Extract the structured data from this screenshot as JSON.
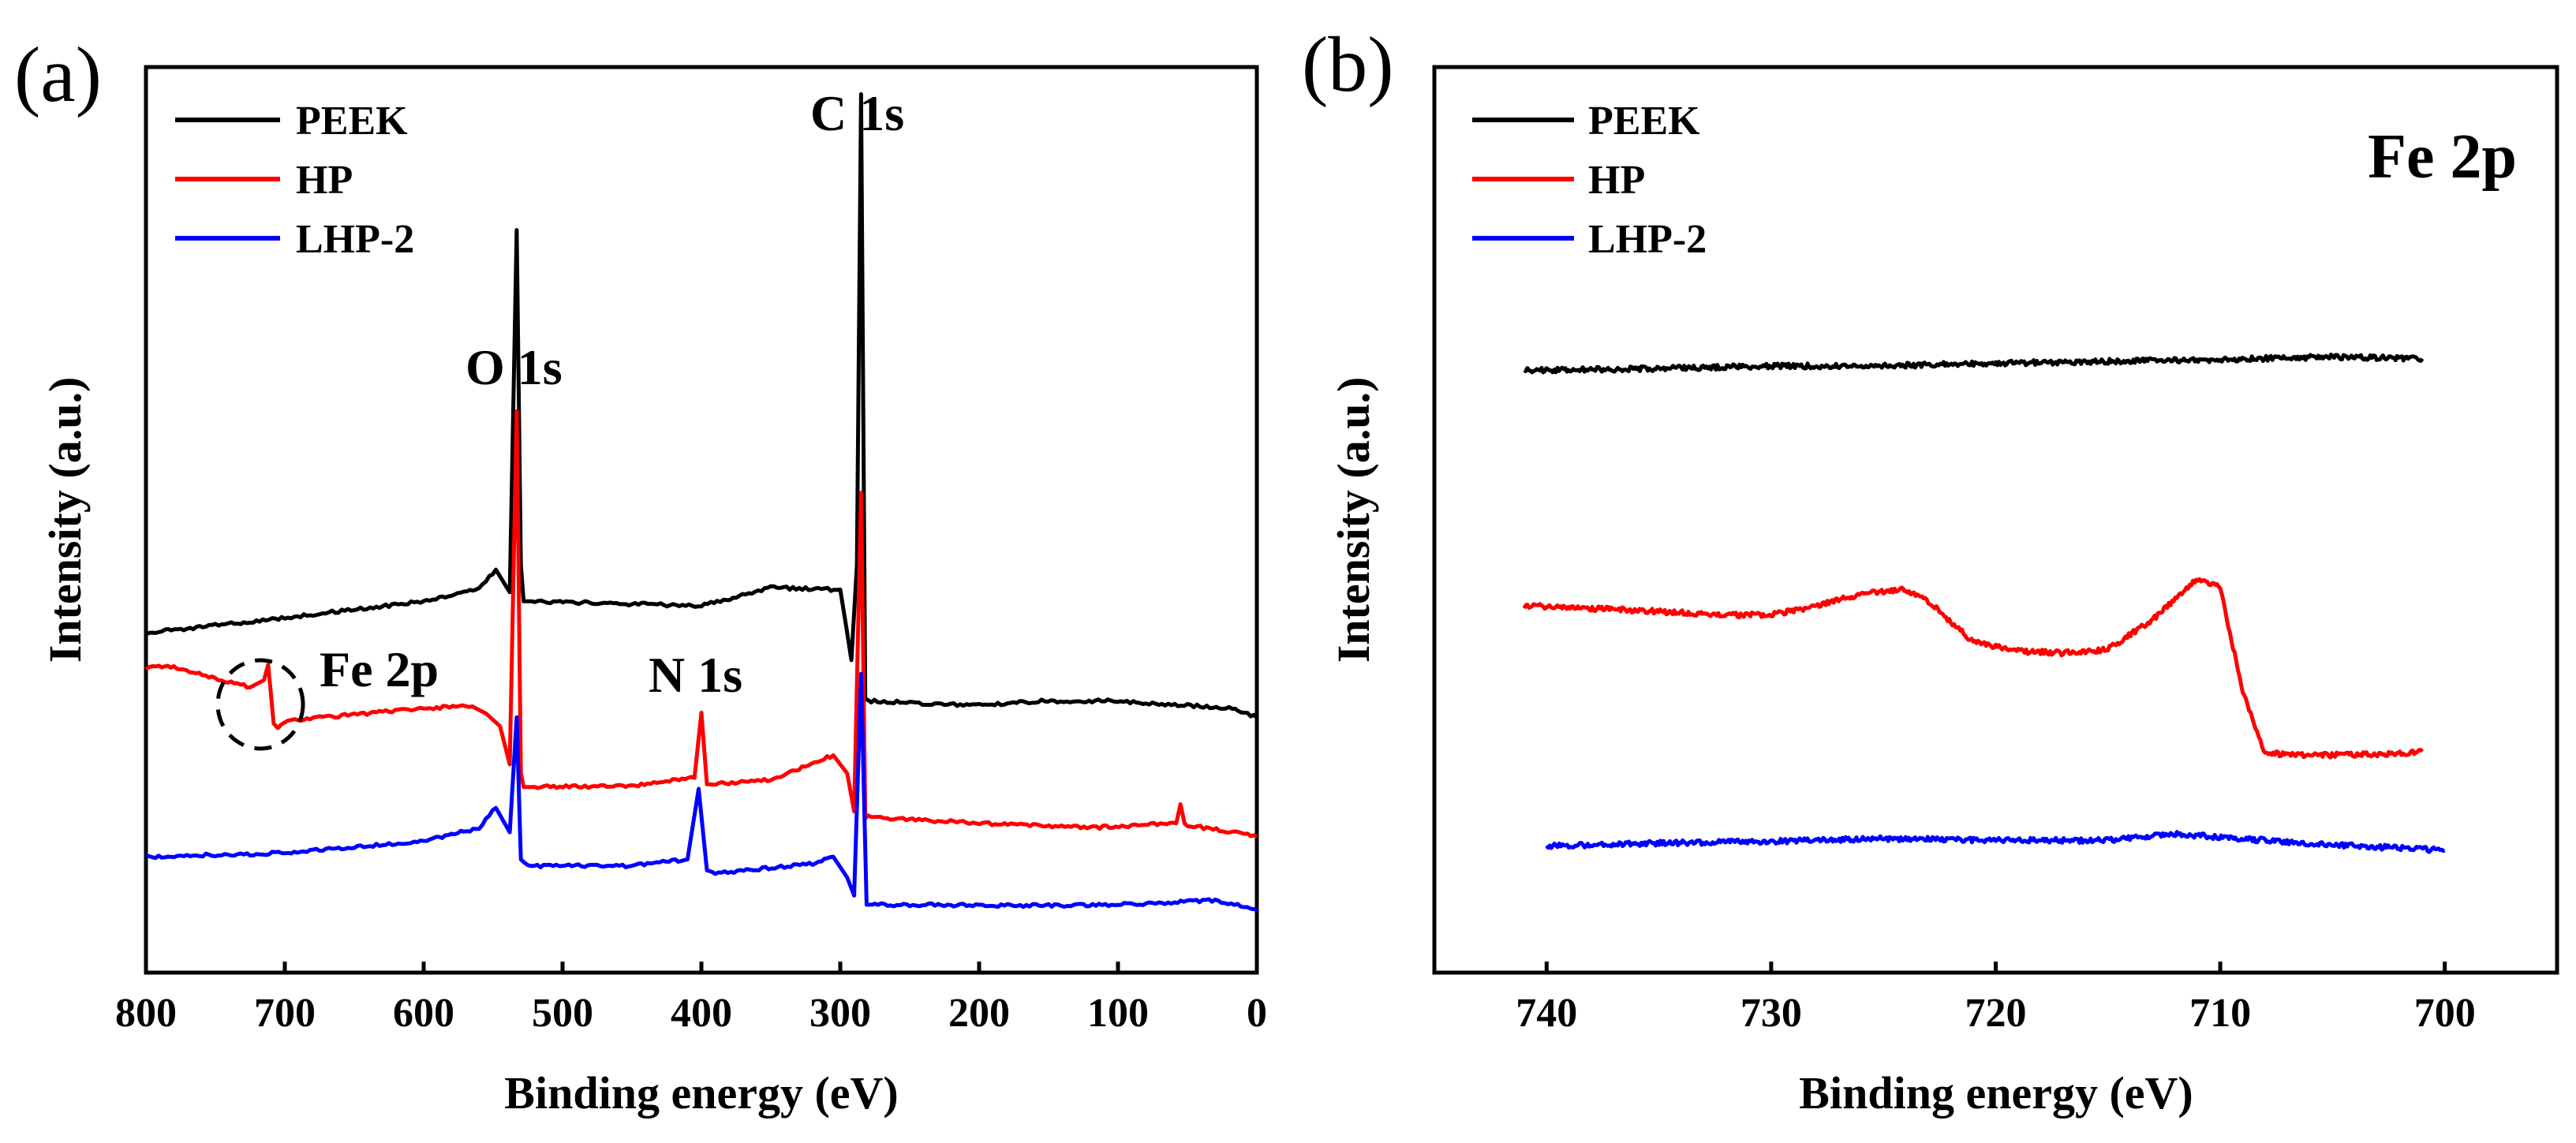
{
  "chart_data": [
    {
      "panel_label": "(a)",
      "type": "line",
      "title": "",
      "xlabel": "Binding energy (eV)",
      "ylabel": "Intensity (a.u.)",
      "xlim": [
        800,
        0
      ],
      "ylim": [
        0,
        100
      ],
      "x_ticks": [
        800,
        700,
        600,
        500,
        400,
        300,
        200,
        100,
        0
      ],
      "x_tick_labels": [
        "800",
        "700",
        "600",
        "500",
        "400",
        "300",
        "200",
        "100",
        "0"
      ],
      "y_ticks_shown": false,
      "legend": {
        "position": "top-left",
        "entries": [
          "PEEK",
          "HP",
          "LHP-2"
        ]
      },
      "colors": {
        "PEEK": "#000000",
        "HP": "#ff0000",
        "LHP-2": "#0000ff"
      },
      "series": [
        {
          "name": "PEEK",
          "x": [
            800,
            700,
            600,
            560,
            548,
            538,
            533,
            530,
            528,
            520,
            400,
            350,
            300,
            296,
            292,
            288,
            285,
            282,
            280,
            250,
            200,
            155,
            105,
            50,
            20,
            0
          ],
          "y": [
            37.5,
            39.2,
            41,
            42.5,
            44.5,
            42,
            82,
            45,
            41,
            41,
            40.5,
            42.5,
            42.3,
            38.5,
            34.5,
            45,
            97,
            30.2,
            30,
            29.8,
            29.5,
            30,
            30,
            29.5,
            29.2,
            28.2
          ]
        },
        {
          "name": "HP",
          "x": [
            800,
            795,
            780,
            725,
            715,
            712,
            708,
            705,
            700,
            600,
            565,
            555,
            545,
            538,
            533,
            530,
            528,
            520,
            450,
            405,
            400,
            396,
            392,
            350,
            305,
            295,
            290,
            285,
            282,
            280,
            200,
            120,
            58,
            55,
            52,
            20,
            0
          ],
          "y": [
            33.5,
            34,
            33.7,
            31.5,
            32.3,
            34,
            27.5,
            27,
            27.8,
            29.2,
            29.4,
            28.6,
            27.2,
            23,
            62,
            22,
            20.5,
            20.5,
            20.6,
            21.5,
            28.7,
            20.8,
            20.8,
            21.3,
            24,
            22,
            17.8,
            53,
            17,
            17.2,
            16.5,
            16,
            16.5,
            18.6,
            16.3,
            15.6,
            15
          ]
        },
        {
          "name": "LHP-2",
          "x": [
            800,
            700,
            600,
            560,
            548,
            538,
            533,
            530,
            525,
            450,
            410,
            402,
            396,
            390,
            320,
            305,
            295,
            290,
            285,
            281,
            275,
            150,
            100,
            30,
            0
          ],
          "y": [
            12.8,
            13.2,
            14.5,
            16,
            18.2,
            15.5,
            28.2,
            12.5,
            11.8,
            11.8,
            12.5,
            20.3,
            11.3,
            11,
            12,
            12.8,
            10.5,
            8.5,
            33,
            7.5,
            7.5,
            7.4,
            7.5,
            8,
            7
          ]
        }
      ],
      "annotations": [
        {
          "text": "C 1s",
          "x": 285,
          "y": 97
        },
        {
          "text": "O 1s",
          "x": 531,
          "y": 82
        },
        {
          "text": "N 1s",
          "x": 400,
          "y": 28.7
        },
        {
          "text": "Fe 2p",
          "x": 712,
          "y": 34
        }
      ]
    },
    {
      "panel_label": "(b)",
      "type": "line",
      "title": "Fe 2p",
      "xlabel": "Binding energy (eV)",
      "ylabel": "Intensity (a.u.)",
      "xlim": [
        745,
        695
      ],
      "ylim": [
        0,
        100
      ],
      "x_ticks": [
        740,
        730,
        720,
        710,
        700
      ],
      "x_tick_labels": [
        "740",
        "730",
        "720",
        "710",
        "700"
      ],
      "y_ticks_shown": false,
      "legend": {
        "position": "top-left",
        "entries": [
          "PEEK",
          "HP",
          "LHP-2"
        ]
      },
      "colors": {
        "PEEK": "#000000",
        "HP": "#ff0000",
        "LHP-2": "#0000ff"
      },
      "series": [
        {
          "name": "PEEK",
          "x": [
            741,
            735,
            730,
            725,
            720,
            715,
            710,
            705,
            701
          ],
          "y": [
            66.5,
            66.7,
            67,
            67,
            67.3,
            67.5,
            67.7,
            68,
            67.8
          ]
        },
        {
          "name": "HP",
          "x": [
            741,
            736,
            732,
            730,
            728,
            726,
            724,
            723,
            721,
            719,
            717,
            715,
            713,
            711,
            710,
            709,
            708,
            706,
            703,
            701
          ],
          "y": [
            40.5,
            40,
            39.5,
            39.5,
            40.5,
            41.8,
            42.3,
            41,
            36.5,
            35.5,
            35.3,
            35.7,
            39,
            43.5,
            42.5,
            31,
            24.2,
            24,
            24.1,
            24.4
          ]
        },
        {
          "name": "LHP-2",
          "x": [
            740,
            735,
            730,
            725,
            720,
            715,
            712,
            708,
            704,
            700
          ],
          "y": [
            14,
            14.3,
            14.5,
            14.8,
            14.6,
            14.6,
            15.3,
            14.6,
            14,
            13.5
          ]
        }
      ]
    }
  ]
}
